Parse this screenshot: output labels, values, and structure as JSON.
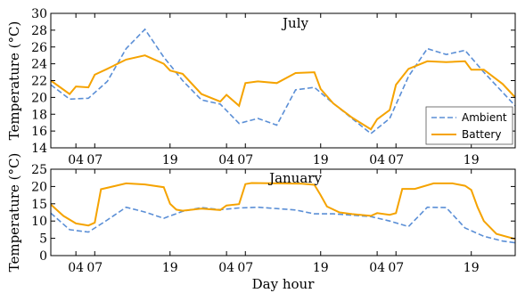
{
  "chart_data": [
    {
      "type": "line",
      "title": "July",
      "ylabel": "Temperature (°C)",
      "xlabel": "",
      "xlim": [
        0,
        74
      ],
      "ylim": [
        14,
        30
      ],
      "yticks": [
        14,
        16,
        18,
        20,
        22,
        24,
        26,
        28,
        30
      ],
      "xticks": [
        {
          "x": 4,
          "label": "04"
        },
        {
          "x": 7,
          "label": "07"
        },
        {
          "x": 19,
          "label": "19"
        },
        {
          "x": 28,
          "label": "04"
        },
        {
          "x": 31,
          "label": "07"
        },
        {
          "x": 43,
          "label": "19"
        },
        {
          "x": 52,
          "label": "04"
        },
        {
          "x": 55,
          "label": "07"
        },
        {
          "x": 67,
          "label": "19"
        }
      ],
      "legend": "right",
      "series": [
        {
          "name": "Ambient",
          "style": "dashed",
          "color": "#5b8fd6",
          "x": [
            0,
            3,
            6,
            9,
            12,
            15,
            18,
            21,
            24,
            27,
            30,
            33,
            36,
            39,
            42,
            45,
            48,
            51,
            54,
            57,
            60,
            63,
            66,
            69,
            72,
            74
          ],
          "y": [
            21.5,
            19.8,
            19.9,
            21.9,
            25.8,
            28.1,
            24.8,
            22.0,
            19.7,
            19.2,
            16.9,
            17.5,
            16.7,
            20.9,
            21.2,
            19.3,
            17.5,
            15.7,
            17.5,
            22.5,
            25.8,
            25.1,
            25.6,
            23.0,
            20.6,
            19.0
          ]
        },
        {
          "name": "Battery",
          "style": "solid",
          "color": "#f5a300",
          "x": [
            0,
            3,
            4,
            6,
            7,
            9,
            12,
            15,
            18,
            19,
            21,
            24,
            27,
            28,
            30,
            31,
            33,
            36,
            39,
            42,
            43,
            45,
            48,
            51,
            52,
            54,
            55,
            57,
            60,
            63,
            66,
            67,
            69,
            72,
            74
          ],
          "y": [
            22.0,
            20.4,
            21.3,
            21.2,
            22.7,
            23.4,
            24.5,
            25.0,
            24.0,
            23.2,
            22.8,
            20.4,
            19.5,
            20.3,
            19.0,
            21.7,
            21.9,
            21.7,
            22.9,
            23.0,
            21.0,
            19.3,
            17.6,
            16.2,
            17.4,
            18.5,
            21.5,
            23.4,
            24.3,
            24.2,
            24.3,
            23.3,
            23.3,
            21.6,
            20.0
          ]
        }
      ]
    },
    {
      "type": "line",
      "title": "January",
      "ylabel": "Temperature (°C)",
      "xlabel": "Day hour",
      "xlim": [
        0,
        74
      ],
      "ylim": [
        0,
        25
      ],
      "yticks": [
        0,
        5,
        10,
        15,
        20,
        25
      ],
      "xticks": [
        {
          "x": 4,
          "label": "04"
        },
        {
          "x": 7,
          "label": "07"
        },
        {
          "x": 19,
          "label": "19"
        },
        {
          "x": 28,
          "label": "04"
        },
        {
          "x": 31,
          "label": "07"
        },
        {
          "x": 43,
          "label": "19"
        },
        {
          "x": 52,
          "label": "04"
        },
        {
          "x": 55,
          "label": "07"
        },
        {
          "x": 67,
          "label": "19"
        }
      ],
      "series": [
        {
          "name": "Ambient",
          "style": "dashed",
          "color": "#5b8fd6",
          "x": [
            0,
            3,
            6,
            9,
            12,
            15,
            18,
            21,
            24,
            27,
            30,
            33,
            36,
            39,
            42,
            45,
            48,
            51,
            54,
            57,
            60,
            63,
            66,
            69,
            72,
            74
          ],
          "y": [
            12.3,
            7.5,
            6.8,
            10.3,
            14.0,
            12.6,
            10.8,
            12.8,
            13.9,
            13.3,
            13.8,
            14.0,
            13.6,
            13.2,
            12.1,
            12.1,
            11.7,
            11.3,
            10.0,
            8.4,
            14.0,
            13.9,
            8.0,
            5.6,
            4.2,
            3.7
          ]
        },
        {
          "name": "Battery",
          "style": "solid",
          "color": "#f5a300",
          "x": [
            0,
            2,
            4,
            6,
            7,
            8,
            12,
            15,
            18,
            19,
            20,
            21,
            24,
            27,
            28,
            30,
            31,
            32,
            36,
            40,
            42,
            43,
            44,
            46,
            48,
            51,
            52,
            54,
            55,
            56,
            58,
            61,
            64,
            66,
            67,
            68,
            69,
            71,
            74
          ],
          "y": [
            14.8,
            11.5,
            9.3,
            8.7,
            9.5,
            19.2,
            20.9,
            20.6,
            19.8,
            15.0,
            13.3,
            13.0,
            13.6,
            13.2,
            14.5,
            14.9,
            20.7,
            21.0,
            20.9,
            20.8,
            20.5,
            17.5,
            14.2,
            12.5,
            12.0,
            11.5,
            12.3,
            11.8,
            12.3,
            19.3,
            19.3,
            20.9,
            20.9,
            20.2,
            19.0,
            14.0,
            10.0,
            6.3,
            4.8
          ]
        }
      ]
    }
  ]
}
